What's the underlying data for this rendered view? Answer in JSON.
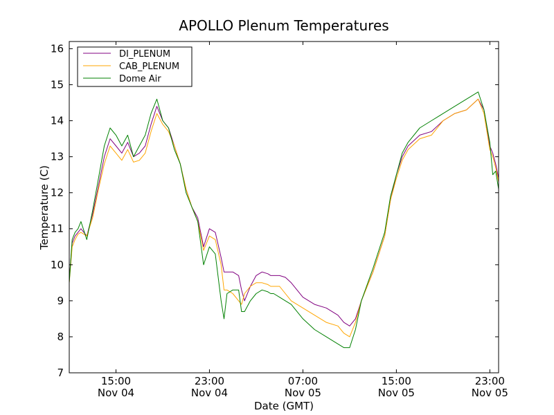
{
  "chart_data": {
    "type": "line",
    "title": "APOLLO Plenum Temperatures",
    "xlabel": "Date (GMT)",
    "ylabel": "Temperature (C)",
    "ylim": [
      7,
      16.2
    ],
    "xlim": [
      "Nov 04 11:00",
      "Nov 05 23:45"
    ],
    "grid": false,
    "legend_position": "top-left",
    "y_ticks": [
      {
        "value": 7,
        "label": "7"
      },
      {
        "value": 8,
        "label": "8"
      },
      {
        "value": 9,
        "label": "9"
      },
      {
        "value": 10,
        "label": "10"
      },
      {
        "value": 11,
        "label": "11"
      },
      {
        "value": 12,
        "label": "12"
      },
      {
        "value": 13,
        "label": "13"
      },
      {
        "value": 14,
        "label": "14"
      },
      {
        "value": 15,
        "label": "15"
      },
      {
        "value": 16,
        "label": "16"
      }
    ],
    "x_ticks": [
      {
        "value": "Nov 04 15:00",
        "time": "15:00",
        "date": "Nov 04"
      },
      {
        "value": "Nov 04 23:00",
        "time": "23:00",
        "date": "Nov 04"
      },
      {
        "value": "Nov 05 07:00",
        "time": "07:00",
        "date": "Nov 05"
      },
      {
        "value": "Nov 05 15:00",
        "time": "15:00",
        "date": "Nov 05"
      },
      {
        "value": "Nov 05 23:00",
        "time": "23:00",
        "date": "Nov 05"
      }
    ],
    "x": [
      "Nov 04 11:00",
      "Nov 04 11:15",
      "Nov 04 11:30",
      "Nov 04 11:45",
      "Nov 04 12:00",
      "Nov 04 12:30",
      "Nov 04 13:00",
      "Nov 04 13:30",
      "Nov 04 14:00",
      "Nov 04 14:30",
      "Nov 04 15:00",
      "Nov 04 15:30",
      "Nov 04 16:00",
      "Nov 04 16:30",
      "Nov 04 17:00",
      "Nov 04 17:30",
      "Nov 04 18:00",
      "Nov 04 18:30",
      "Nov 04 19:00",
      "Nov 04 19:30",
      "Nov 04 20:00",
      "Nov 04 20:30",
      "Nov 04 21:00",
      "Nov 04 21:30",
      "Nov 04 22:00",
      "Nov 04 22:30",
      "Nov 04 23:00",
      "Nov 04 23:30",
      "Nov 05 00:00",
      "Nov 05 00:15",
      "Nov 05 00:30",
      "Nov 05 01:00",
      "Nov 05 01:30",
      "Nov 05 01:45",
      "Nov 05 02:00",
      "Nov 05 02:30",
      "Nov 05 03:00",
      "Nov 05 03:30",
      "Nov 05 04:00",
      "Nov 05 04:15",
      "Nov 05 04:30",
      "Nov 05 05:00",
      "Nov 05 05:30",
      "Nov 05 06:00",
      "Nov 05 07:00",
      "Nov 05 08:00",
      "Nov 05 09:00",
      "Nov 05 10:00",
      "Nov 05 10:30",
      "Nov 05 11:00",
      "Nov 05 11:30",
      "Nov 05 12:00",
      "Nov 05 13:00",
      "Nov 05 14:00",
      "Nov 05 14:30",
      "Nov 05 15:00",
      "Nov 05 15:30",
      "Nov 05 16:00",
      "Nov 05 17:00",
      "Nov 05 18:00",
      "Nov 05 19:00",
      "Nov 05 20:00",
      "Nov 05 21:00",
      "Nov 05 22:00",
      "Nov 05 22:30",
      "Nov 05 23:00",
      "Nov 05 23:15",
      "Nov 05 23:30",
      "Nov 05 23:45"
    ],
    "series": [
      {
        "name": "DI_PLENUM",
        "color": "#800080",
        "values": [
          9.6,
          10.6,
          10.8,
          10.9,
          11.0,
          10.8,
          11.4,
          12.2,
          13.0,
          13.5,
          13.3,
          13.1,
          13.4,
          13.0,
          13.1,
          13.3,
          13.9,
          14.4,
          14.0,
          13.8,
          13.3,
          12.8,
          12.1,
          11.6,
          11.3,
          10.5,
          11.0,
          10.9,
          10.2,
          9.8,
          9.8,
          9.8,
          9.7,
          9.3,
          9.0,
          9.4,
          9.7,
          9.8,
          9.75,
          9.7,
          9.7,
          9.7,
          9.65,
          9.5,
          9.1,
          8.9,
          8.8,
          8.6,
          8.4,
          8.3,
          8.5,
          9.0,
          9.8,
          10.8,
          11.8,
          12.5,
          13.0,
          13.3,
          13.6,
          13.7,
          14.0,
          14.2,
          14.3,
          14.6,
          14.3,
          13.3,
          13.1,
          12.8,
          12.4
        ]
      },
      {
        "name": "CAB_PLENUM",
        "color": "#ffa500",
        "values": [
          9.5,
          10.5,
          10.7,
          10.85,
          10.9,
          10.8,
          11.3,
          12.1,
          12.8,
          13.3,
          13.1,
          12.9,
          13.2,
          12.85,
          12.9,
          13.1,
          13.7,
          14.2,
          13.9,
          13.7,
          13.3,
          12.8,
          12.1,
          11.6,
          11.2,
          10.4,
          10.8,
          10.7,
          10.0,
          9.3,
          9.3,
          9.2,
          9.0,
          8.9,
          9.2,
          9.4,
          9.5,
          9.5,
          9.45,
          9.4,
          9.4,
          9.4,
          9.2,
          9.0,
          8.8,
          8.6,
          8.4,
          8.3,
          8.1,
          8.0,
          8.4,
          9.0,
          9.8,
          10.8,
          11.8,
          12.4,
          12.9,
          13.2,
          13.5,
          13.6,
          14.0,
          14.2,
          14.3,
          14.6,
          14.2,
          13.2,
          13.0,
          12.7,
          12.3
        ]
      },
      {
        "name": "Dome Air",
        "color": "#008000",
        "values": [
          9.5,
          10.7,
          10.9,
          11.0,
          11.2,
          10.7,
          11.5,
          12.4,
          13.3,
          13.8,
          13.6,
          13.3,
          13.6,
          13.0,
          13.3,
          13.6,
          14.2,
          14.6,
          14.0,
          13.8,
          13.2,
          12.8,
          12.0,
          11.6,
          11.2,
          10.0,
          10.5,
          10.3,
          9.0,
          8.5,
          9.2,
          9.3,
          9.3,
          8.7,
          8.7,
          9.0,
          9.2,
          9.3,
          9.25,
          9.2,
          9.2,
          9.1,
          9.0,
          8.9,
          8.5,
          8.2,
          8.0,
          7.8,
          7.7,
          7.7,
          8.2,
          9.0,
          9.9,
          10.9,
          11.9,
          12.5,
          13.1,
          13.4,
          13.8,
          14.0,
          14.2,
          14.4,
          14.6,
          14.8,
          14.3,
          13.4,
          12.5,
          12.6,
          12.1
        ]
      }
    ]
  }
}
